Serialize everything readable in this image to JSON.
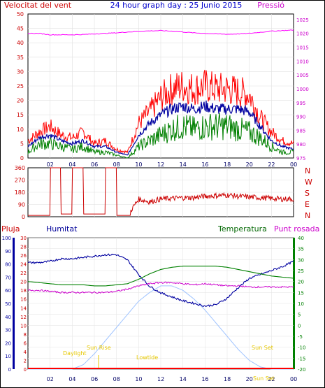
{
  "header": {
    "left_label": "Velocitat del vent",
    "title": "24 hour graph day : 25 Junio 2015",
    "right_label": "Pressió"
  },
  "colors": {
    "wind_gust": "#ff0000",
    "wind_avg": "#0000a0",
    "wind_low": "#008000",
    "pressure": "#ff00ff",
    "direction": "#cc0000",
    "humidity": "#0000a0",
    "temperature": "#008000",
    "dewpoint": "#cc00cc",
    "solar": "#a0c4ff",
    "rain": "#ff0000",
    "events": "#e6c800"
  },
  "labels": {
    "pluja": "Pluja",
    "humitat": "Humitat",
    "temperatura": "Temperatura",
    "punt_rosada": "Punt rosada",
    "compass": [
      "N",
      "W",
      "S",
      "E",
      "N"
    ]
  },
  "events": [
    {
      "label": "Sun Rise"
    },
    {
      "label": "Daylight"
    },
    {
      "label": "Lowtide"
    },
    {
      "label": "Sun Set"
    },
    {
      "label": "Sun Set"
    }
  ],
  "chart_data": [
    {
      "type": "line",
      "x": [
        0,
        1,
        2,
        3,
        4,
        5,
        6,
        7,
        8,
        9,
        10,
        11,
        12,
        13,
        14,
        15,
        16,
        17,
        18,
        19,
        20,
        21,
        22,
        23,
        24
      ],
      "xticks": [
        "02",
        "04",
        "06",
        "08",
        "10",
        "12",
        "14",
        "16",
        "18",
        "20",
        "22",
        "00"
      ],
      "series": [
        {
          "values": [
            6,
            9,
            11,
            8,
            7,
            9,
            5,
            6,
            3,
            2,
            12,
            16,
            21,
            24,
            25,
            24,
            25,
            24,
            24,
            23,
            22,
            14,
            9,
            6,
            5
          ]
        },
        {
          "values": [
            4,
            7,
            8,
            6,
            5,
            6,
            4,
            4,
            2,
            1,
            8,
            12,
            15,
            17,
            18,
            17,
            18,
            17,
            17,
            17,
            16,
            11,
            6,
            4,
            3
          ]
        },
        {
          "values": [
            2,
            5,
            5,
            4,
            3,
            4,
            2,
            2,
            1,
            0,
            4,
            6,
            8,
            10,
            11,
            10,
            11,
            11,
            11,
            10,
            9,
            7,
            4,
            2,
            2
          ]
        },
        {
          "values": [
            1020,
            1020,
            1019.5,
            1019.5,
            1019.5,
            1019.6,
            1019.8,
            1020,
            1020.2,
            1020.5,
            1020.7,
            1020.9,
            1021,
            1020.8,
            1020.5,
            1020.2,
            1020,
            1019.8,
            1019.7,
            1019.8,
            1020,
            1020.4,
            1020.8,
            1021,
            1021.2
          ]
        }
      ],
      "yticks_left": [
        "0",
        "5",
        "10",
        "15",
        "20",
        "25",
        "30",
        "35",
        "40",
        "45",
        "50"
      ],
      "yticks_right": [
        "975",
        "980",
        "985",
        "990",
        "995",
        "1000",
        "1005",
        "1010",
        "1015",
        "1020",
        "1025"
      ],
      "ylim_left": [
        0,
        50
      ],
      "ylim_right": [
        975,
        1027
      ]
    },
    {
      "type": "line",
      "x": [
        0,
        1,
        2,
        3,
        4,
        5,
        6,
        7,
        8,
        9,
        10,
        11,
        12,
        13,
        14,
        15,
        16,
        17,
        18,
        19,
        20,
        21,
        22,
        23,
        24
      ],
      "series": [
        {
          "values": [
            10,
            10,
            360,
            20,
            360,
            20,
            20,
            360,
            10,
            10,
            130,
            110,
            130,
            135,
            140,
            140,
            150,
            155,
            160,
            150,
            145,
            140,
            135,
            130,
            130
          ]
        }
      ],
      "yticks": [
        "0",
        "90",
        "180",
        "270",
        "360"
      ],
      "ylim": [
        0,
        360
      ]
    },
    {
      "type": "line",
      "x": [
        0,
        1,
        2,
        3,
        4,
        5,
        6,
        7,
        8,
        9,
        10,
        11,
        12,
        13,
        14,
        15,
        16,
        17,
        18,
        19,
        20,
        21,
        22,
        23,
        24
      ],
      "yticks_pluja": [
        "0",
        "2",
        "4",
        "6",
        "8",
        "10",
        "12",
        "14",
        "16",
        "18",
        "20",
        "22",
        "24",
        "26",
        "28",
        "30"
      ],
      "yticks_humitat": [
        "0",
        "10",
        "20",
        "30",
        "40",
        "50",
        "60",
        "70",
        "80",
        "90",
        "100"
      ],
      "yticks_temp": [
        "-20",
        "-15",
        "-10",
        "-5",
        "0",
        "5",
        "10",
        "15",
        "20",
        "25",
        "30",
        "35",
        "40"
      ],
      "ylim_humitat": [
        0,
        100
      ],
      "ylim_temp": [
        -20,
        40
      ],
      "series": [
        {
          "values": [
            81,
            81,
            82,
            84,
            84,
            85,
            86,
            87,
            87,
            83,
            72,
            63,
            58,
            55,
            52,
            50,
            48,
            49,
            54,
            62,
            69,
            72,
            75,
            78,
            82
          ]
        },
        {
          "values": [
            20,
            19.5,
            19,
            18.5,
            18.5,
            18.5,
            18,
            18,
            18.5,
            19,
            21,
            23.5,
            25.5,
            26.5,
            27,
            27,
            27,
            27,
            26.5,
            25.5,
            24.5,
            23.5,
            22.5,
            22,
            21.5
          ]
        },
        {
          "values": [
            16,
            16,
            15.5,
            15,
            15,
            15,
            15,
            15,
            15.5,
            16.5,
            18,
            19,
            19.5,
            19.5,
            19,
            18.5,
            19,
            18.5,
            18,
            18,
            17.5,
            17.5,
            17.5,
            17.5,
            17.5
          ]
        },
        {
          "values": [
            -20,
            -20,
            -20,
            -20,
            -20,
            -18,
            -13,
            -7,
            -1,
            5,
            11,
            15,
            18,
            18,
            16,
            12,
            7,
            1,
            -5,
            -11,
            -16,
            -19,
            -20,
            -20,
            -20
          ]
        }
      ]
    }
  ]
}
